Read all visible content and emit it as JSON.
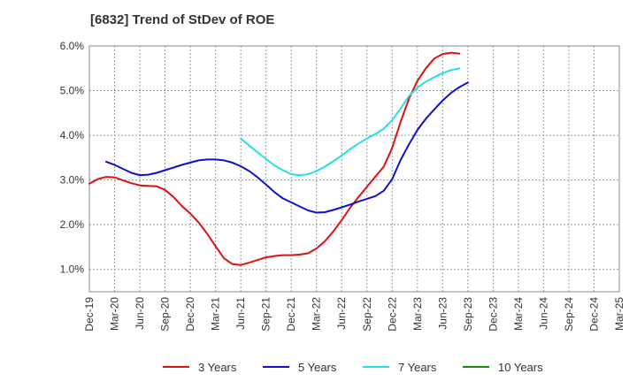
{
  "title": "[6832]  Trend of StDev of ROE",
  "chart_data": {
    "type": "line",
    "title": "[6832]  Trend of StDev of ROE",
    "xlabel": "",
    "ylabel": "",
    "x_ticks": [
      "Dec-19",
      "Mar-20",
      "Jun-20",
      "Sep-20",
      "Dec-20",
      "Mar-21",
      "Jun-21",
      "Sep-21",
      "Dec-21",
      "Mar-22",
      "Jun-22",
      "Sep-22",
      "Dec-22",
      "Mar-23",
      "Jun-23",
      "Sep-23",
      "Dec-23",
      "Mar-24",
      "Jun-24",
      "Sep-24",
      "Dec-24",
      "Mar-25"
    ],
    "y_ticks": [
      "1.0%",
      "2.0%",
      "3.0%",
      "4.0%",
      "5.0%",
      "6.0%"
    ],
    "ylim": [
      0.5,
      6.0
    ],
    "grid": true,
    "legend_position": "bottom",
    "series": [
      {
        "name": "3 Years",
        "color": "#dd1111",
        "points": [
          [
            0,
            2.92
          ],
          [
            1,
            3.02
          ],
          [
            2,
            3.07
          ],
          [
            3,
            3.06
          ],
          [
            4,
            2.99
          ],
          [
            5,
            2.93
          ],
          [
            6,
            2.88
          ],
          [
            7,
            2.87
          ],
          [
            8,
            2.86
          ],
          [
            9,
            2.78
          ],
          [
            10,
            2.62
          ],
          [
            11,
            2.42
          ],
          [
            12,
            2.25
          ],
          [
            13,
            2.05
          ],
          [
            14,
            1.8
          ],
          [
            15,
            1.52
          ],
          [
            16,
            1.25
          ],
          [
            17,
            1.12
          ],
          [
            18,
            1.1
          ],
          [
            19,
            1.15
          ],
          [
            20,
            1.21
          ],
          [
            21,
            1.27
          ],
          [
            22,
            1.3
          ],
          [
            23,
            1.32
          ],
          [
            24,
            1.32
          ],
          [
            25,
            1.33
          ],
          [
            26,
            1.36
          ],
          [
            27,
            1.47
          ],
          [
            28,
            1.63
          ],
          [
            29,
            1.85
          ],
          [
            30,
            2.1
          ],
          [
            31,
            2.38
          ],
          [
            32,
            2.62
          ],
          [
            33,
            2.85
          ],
          [
            34,
            3.08
          ],
          [
            35,
            3.3
          ],
          [
            36,
            3.72
          ],
          [
            37,
            4.3
          ],
          [
            38,
            4.82
          ],
          [
            39,
            5.22
          ],
          [
            40,
            5.5
          ],
          [
            41,
            5.72
          ],
          [
            42,
            5.82
          ],
          [
            43,
            5.85
          ],
          [
            44,
            5.83
          ]
        ]
      },
      {
        "name": "5 Years",
        "color": "#1010cc",
        "points": [
          [
            2,
            3.41
          ],
          [
            3,
            3.34
          ],
          [
            4,
            3.25
          ],
          [
            5,
            3.16
          ],
          [
            6,
            3.11
          ],
          [
            7,
            3.12
          ],
          [
            8,
            3.16
          ],
          [
            9,
            3.22
          ],
          [
            10,
            3.28
          ],
          [
            11,
            3.34
          ],
          [
            12,
            3.39
          ],
          [
            13,
            3.44
          ],
          [
            14,
            3.46
          ],
          [
            15,
            3.46
          ],
          [
            16,
            3.44
          ],
          [
            17,
            3.39
          ],
          [
            18,
            3.31
          ],
          [
            19,
            3.2
          ],
          [
            20,
            3.06
          ],
          [
            21,
            2.9
          ],
          [
            22,
            2.73
          ],
          [
            23,
            2.59
          ],
          [
            24,
            2.5
          ],
          [
            25,
            2.41
          ],
          [
            26,
            2.32
          ],
          [
            27,
            2.27
          ],
          [
            28,
            2.28
          ],
          [
            29,
            2.33
          ],
          [
            30,
            2.39
          ],
          [
            31,
            2.45
          ],
          [
            32,
            2.52
          ],
          [
            33,
            2.58
          ],
          [
            34,
            2.64
          ],
          [
            35,
            2.76
          ],
          [
            36,
            3.02
          ],
          [
            37,
            3.45
          ],
          [
            38,
            3.8
          ],
          [
            39,
            4.12
          ],
          [
            40,
            4.37
          ],
          [
            41,
            4.58
          ],
          [
            42,
            4.78
          ],
          [
            43,
            4.95
          ],
          [
            44,
            5.08
          ],
          [
            45,
            5.18
          ]
        ]
      },
      {
        "name": "7 Years",
        "color": "#22e0e8",
        "points": [
          [
            18,
            3.93
          ],
          [
            19,
            3.77
          ],
          [
            20,
            3.62
          ],
          [
            21,
            3.47
          ],
          [
            22,
            3.33
          ],
          [
            23,
            3.22
          ],
          [
            24,
            3.13
          ],
          [
            25,
            3.11
          ],
          [
            26,
            3.13
          ],
          [
            27,
            3.2
          ],
          [
            28,
            3.3
          ],
          [
            29,
            3.42
          ],
          [
            30,
            3.55
          ],
          [
            31,
            3.69
          ],
          [
            32,
            3.82
          ],
          [
            33,
            3.93
          ],
          [
            34,
            4.03
          ],
          [
            35,
            4.15
          ],
          [
            36,
            4.34
          ],
          [
            37,
            4.6
          ],
          [
            38,
            4.88
          ],
          [
            39,
            5.07
          ],
          [
            40,
            5.2
          ],
          [
            41,
            5.3
          ],
          [
            42,
            5.39
          ],
          [
            43,
            5.46
          ],
          [
            44,
            5.5
          ]
        ]
      },
      {
        "name": "10 Years",
        "color": "#118811",
        "points": []
      }
    ]
  }
}
